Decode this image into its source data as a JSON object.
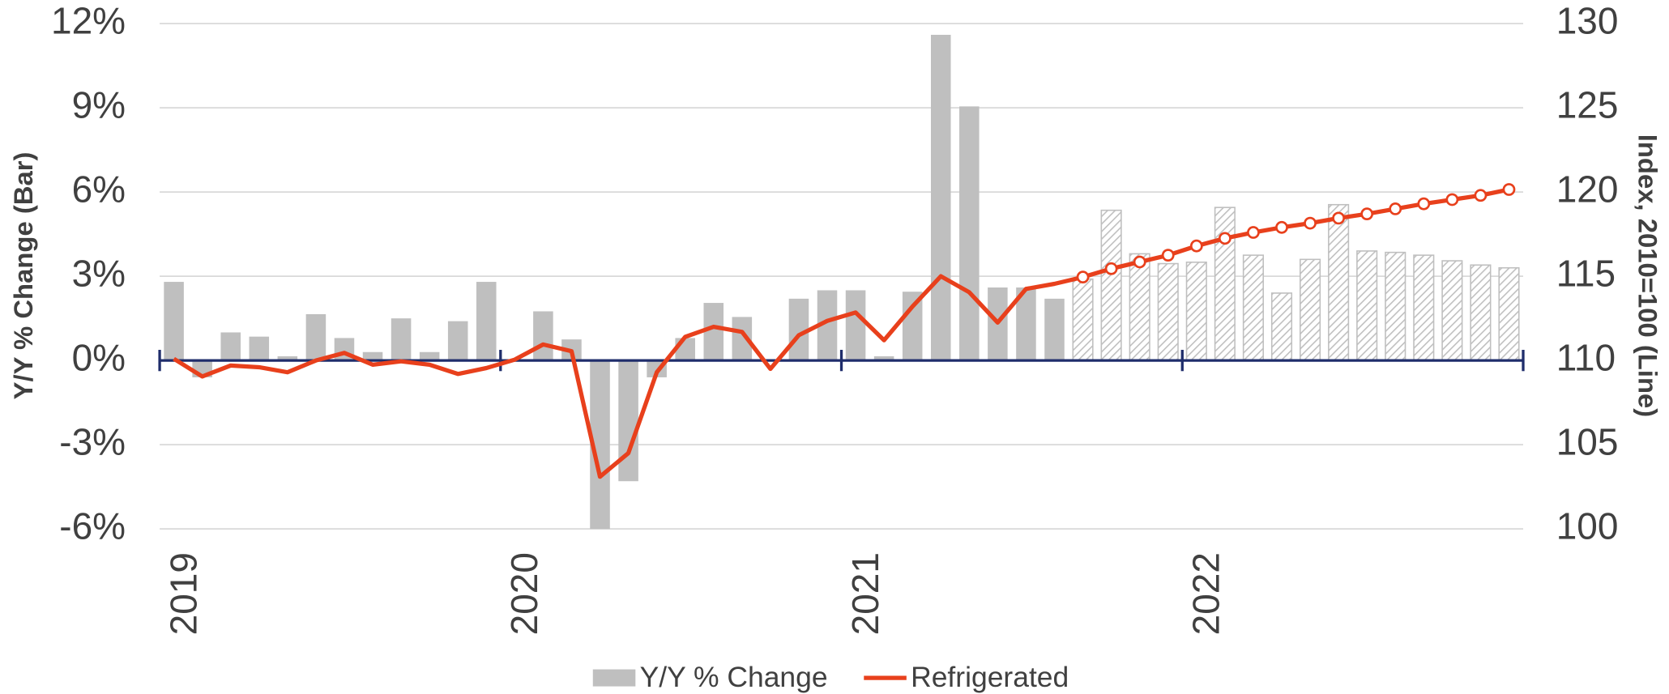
{
  "chart_data": {
    "type": "bar_line",
    "y_axis_label": "Y/Y % Change (Bar)",
    "y2_axis_label": "Index, 2010=100 (Line)",
    "categories": [
      "2019",
      null,
      null,
      null,
      null,
      null,
      null,
      null,
      null,
      null,
      null,
      null,
      "2020",
      null,
      null,
      null,
      null,
      null,
      null,
      null,
      null,
      null,
      null,
      null,
      "2021",
      null,
      null,
      null,
      null,
      null,
      null,
      null,
      null,
      null,
      null,
      null,
      "2022",
      null,
      null,
      null,
      null,
      null,
      null,
      null,
      null,
      null,
      null,
      null
    ],
    "forecast_start_index": 32,
    "series": [
      {
        "name": "Y/Y % Change",
        "type": "bar",
        "color": "#bfbfbf",
        "axis": "y",
        "values": [
          2.8,
          -0.6,
          1.0,
          0.85,
          0.15,
          1.65,
          0.8,
          0.3,
          1.5,
          0.3,
          1.4,
          2.8,
          0.0,
          1.75,
          0.75,
          -6.0,
          -4.3,
          -0.6,
          0.8,
          2.05,
          1.55,
          0.0,
          2.2,
          2.5,
          2.5,
          0.15,
          2.45,
          11.6,
          9.05,
          2.6,
          2.6,
          2.2,
          2.9,
          5.35,
          3.8,
          3.45,
          3.5,
          5.45,
          3.75,
          2.4,
          3.6,
          5.55,
          3.9,
          3.85,
          3.75,
          3.55,
          3.4,
          3.3
        ]
      },
      {
        "name": "Refrigerated",
        "type": "line",
        "color": "#e8401c",
        "axis": "y2",
        "values": [
          110.1,
          109.05,
          109.7,
          109.6,
          109.3,
          110.0,
          110.45,
          109.75,
          109.95,
          109.75,
          109.2,
          109.55,
          110.05,
          110.95,
          110.55,
          103.1,
          104.5,
          109.3,
          111.4,
          112.0,
          111.7,
          109.5,
          111.5,
          112.35,
          112.85,
          111.2,
          113.2,
          115.0,
          114.05,
          112.25,
          114.25,
          114.55,
          114.95,
          115.45,
          115.85,
          116.25,
          116.8,
          117.25,
          117.6,
          117.9,
          118.15,
          118.45,
          118.7,
          119.0,
          119.3,
          119.55,
          119.8,
          120.15
        ]
      }
    ],
    "ylim": [
      -6,
      12
    ],
    "yticks": [
      {
        "value": -6,
        "label": "-6%"
      },
      {
        "value": -3,
        "label": "-3%"
      },
      {
        "value": 0,
        "label": "0%"
      },
      {
        "value": 3,
        "label": "3%"
      },
      {
        "value": 6,
        "label": "6%"
      },
      {
        "value": 9,
        "label": "9%"
      },
      {
        "value": 12,
        "label": "12%"
      }
    ],
    "y2lim": [
      100,
      130
    ],
    "y2ticks": [
      100,
      105,
      110,
      115,
      120,
      125,
      130
    ],
    "grid": true,
    "legend": "bottom"
  }
}
